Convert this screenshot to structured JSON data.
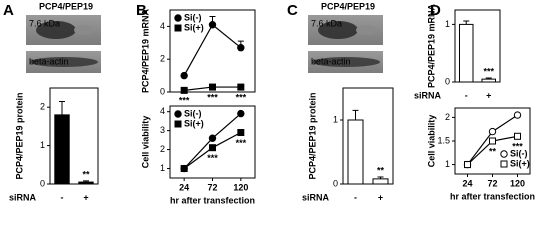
{
  "chart_data": [
    {
      "type": "bar",
      "panel": "A",
      "blot": {
        "title": "PCP4/PEP19",
        "bands": [
          "7.6 kDa",
          "beta-actin"
        ]
      },
      "ylabel": "PCP4/PEP19 protein",
      "xlabel": "siRNA",
      "categories": [
        "-",
        "+"
      ],
      "values": [
        1.8,
        0.05
      ],
      "errors": [
        0.35,
        0.03
      ],
      "significance": [
        null,
        "**"
      ],
      "color": "#000000",
      "ylim": [
        0,
        2.5
      ],
      "yticks": [
        0,
        1,
        2
      ]
    },
    {
      "type": "line",
      "panel": "B",
      "ylabel": "PCP4/PEP19 mRNA",
      "x": [
        24,
        72,
        120
      ],
      "xlim": [
        0,
        144
      ],
      "series": [
        {
          "name": "Si(-)",
          "marker": "circle",
          "color": "#000000",
          "fill": "#000000",
          "values": [
            1.0,
            4.1,
            2.7
          ],
          "errors": [
            0.1,
            0.5,
            0.4
          ]
        },
        {
          "name": "Si(+)",
          "marker": "square",
          "color": "#000000",
          "fill": "#000000",
          "values": [
            0.1,
            0.3,
            0.3
          ],
          "errors": [
            0.05,
            0.05,
            0.05
          ],
          "significance": [
            "***",
            "***",
            "***"
          ]
        }
      ],
      "legend": "upper left",
      "ylim": [
        0,
        5
      ],
      "yticks": [
        0,
        2,
        4
      ]
    },
    {
      "type": "line",
      "ylabel": "Cell viability",
      "xlabel": "hr after transfection",
      "x": [
        24,
        72,
        120
      ],
      "xlim": [
        0,
        144
      ],
      "xticks": [
        24,
        72,
        120
      ],
      "series": [
        {
          "name": "Si(-)",
          "marker": "circle",
          "color": "#000000",
          "fill": "#000000",
          "values": [
            1.0,
            2.6,
            3.9
          ]
        },
        {
          "name": "Si(+)",
          "marker": "square",
          "color": "#000000",
          "fill": "#000000",
          "values": [
            1.0,
            2.1,
            2.9
          ],
          "significance": [
            null,
            "***",
            "***"
          ]
        }
      ],
      "legend": "upper left",
      "ylim": [
        0.5,
        4.3
      ],
      "yticks": [
        1,
        2,
        3,
        4
      ]
    },
    {
      "type": "bar",
      "panel": "C",
      "blot": {
        "title": "PCP4/PEP19",
        "bands": [
          "7.6 kDa",
          "beta-actin"
        ]
      },
      "ylabel": "PCP4/PEP19 protein",
      "xlabel": "siRNA",
      "categories": [
        "-",
        "+"
      ],
      "values": [
        1.0,
        0.08
      ],
      "errors": [
        0.15,
        0.03
      ],
      "significance": [
        null,
        "**"
      ],
      "color": "#ffffff",
      "ylim": [
        0,
        1.5
      ],
      "yticks": [
        0,
        1
      ]
    },
    {
      "type": "bar",
      "panel": "D",
      "ylabel": "PCP4/PEP19 mRNA",
      "xlabel": "siRNA",
      "categories": [
        "-",
        "+"
      ],
      "values": [
        1.0,
        0.05
      ],
      "errors": [
        0.06,
        0.02
      ],
      "significance": [
        null,
        "***"
      ],
      "color": "#ffffff",
      "ylim": [
        0,
        1.25
      ],
      "yticks": [
        0,
        1
      ]
    },
    {
      "type": "line",
      "ylabel": "Cell viability",
      "xlabel": "hr after transfection",
      "x": [
        24,
        72,
        120
      ],
      "xlim": [
        0,
        144
      ],
      "xticks": [
        24,
        72,
        120
      ],
      "series": [
        {
          "name": "Si(-)",
          "marker": "circle",
          "color": "#000000",
          "fill": "#ffffff",
          "values": [
            1.0,
            1.7,
            2.05
          ]
        },
        {
          "name": "Si(+)",
          "marker": "square",
          "color": "#000000",
          "fill": "#ffffff",
          "values": [
            1.0,
            1.5,
            1.6
          ],
          "significance": [
            null,
            "**",
            "***"
          ]
        }
      ],
      "legend": "lower right",
      "ylim": [
        0.8,
        2.2
      ],
      "yticks": [
        1,
        1.5,
        2
      ]
    }
  ]
}
